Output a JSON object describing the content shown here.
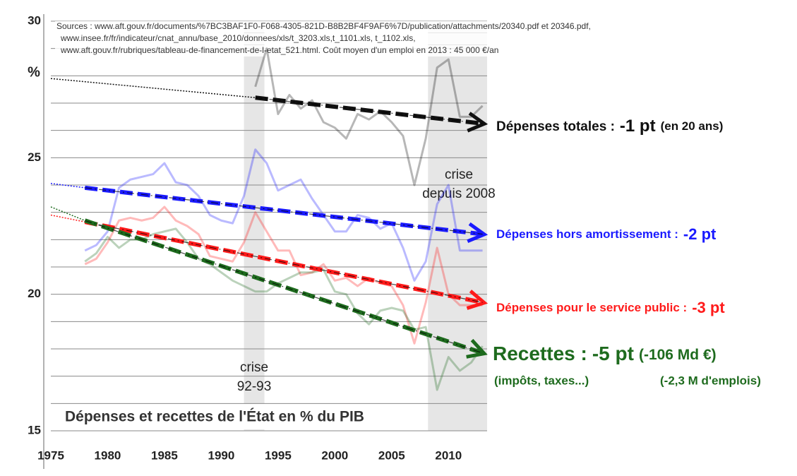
{
  "chart_data": {
    "type": "line",
    "title": "Dépenses et recettes de l'État en % du PIB",
    "sources": [
      "Sources : www.aft.gouv.fr/documents/%7BC3BAF1F0-F068-4305-821D-B8B2BF4F9AF6%7D/publication/attachments/20340.pdf et 20346.pdf,",
      "www.insee.fr/fr/indicateur/cnat_annu/base_2010/donnees/xls/t_3203.xls,t_1101.xls, t_1102.xls,",
      "www.aft.gouv.fr/rubriques/tableau-de-financement-de-l-etat_521.html. Coût moyen d'un emploi en 2013 : 45 000 €/an"
    ],
    "y_unit": "%",
    "xlim": [
      1975,
      2013.4
    ],
    "xticks": [
      1975,
      1980,
      1985,
      1990,
      1995,
      2000,
      2005,
      2010
    ],
    "ylim": [
      15,
      30
    ],
    "yticks": [
      15,
      20,
      25,
      30
    ],
    "ygrid": [
      15,
      16,
      17,
      18,
      19,
      20,
      21,
      22,
      23,
      24,
      25,
      26,
      27,
      28,
      29,
      30
    ],
    "bands": [
      {
        "x": [
          1992,
          1993.8
        ],
        "label": [
          "crise",
          "92-93"
        ]
      },
      {
        "x": [
          2008.2,
          2013.4
        ],
        "label": [
          "crise",
          "depuis 2008"
        ]
      }
    ],
    "x": [
      1978,
      1979,
      1980,
      1981,
      1982,
      1983,
      1984,
      1985,
      1986,
      1987,
      1988,
      1989,
      1990,
      1991,
      1992,
      1993,
      1994,
      1995,
      1996,
      1997,
      1998,
      1999,
      2000,
      2001,
      2002,
      2003,
      2004,
      2005,
      2006,
      2007,
      2008,
      2009,
      2010,
      2011,
      2012,
      2013
    ],
    "series": [
      {
        "name": "Dépenses totales",
        "color": "#111111",
        "values": [
          null,
          null,
          null,
          null,
          null,
          null,
          null,
          null,
          null,
          null,
          null,
          null,
          null,
          null,
          null,
          27.6,
          29.0,
          26.6,
          27.3,
          26.8,
          27.1,
          26.3,
          26.1,
          25.7,
          26.6,
          26.4,
          26.7,
          26.3,
          25.8,
          24.0,
          25.7,
          28.3,
          28.6,
          26.5,
          26.5,
          26.9
        ],
        "trend": {
          "x": [
            1975,
            1993,
            2013
          ],
          "values": [
            27.9,
            27.2,
            26.25
          ]
        },
        "label": [
          "Dépenses totales :",
          "-1 pt",
          "(en 20 ans)"
        ]
      },
      {
        "name": "Dépenses hors amortissement",
        "color": "#1a1aff",
        "values": [
          21.6,
          21.8,
          22.3,
          23.9,
          24.2,
          24.3,
          24.4,
          24.8,
          24.1,
          24.0,
          23.6,
          22.9,
          22.7,
          22.6,
          23.6,
          25.3,
          24.8,
          23.8,
          24.0,
          24.2,
          23.5,
          22.9,
          22.3,
          22.3,
          22.9,
          22.8,
          22.4,
          22.6,
          21.7,
          20.5,
          21.2,
          23.3,
          24.0,
          21.6,
          21.6,
          21.6
        ],
        "trend": {
          "x": [
            1975,
            1978,
            2013
          ],
          "values": [
            24.06,
            23.9,
            22.2
          ]
        },
        "label": [
          "Dépenses hors amortissement :",
          "-2 pt"
        ]
      },
      {
        "name": "Dépenses pour le service public",
        "color": "#ff1a1a",
        "values": [
          21.1,
          21.3,
          21.9,
          22.7,
          22.8,
          22.7,
          22.8,
          23.2,
          22.7,
          22.5,
          22.2,
          21.4,
          21.3,
          21.2,
          21.9,
          23.0,
          22.3,
          21.6,
          21.6,
          20.7,
          20.8,
          21.1,
          20.5,
          20.6,
          20.3,
          20.6,
          20.4,
          20.3,
          19.6,
          18.2,
          19.7,
          21.7,
          20.0,
          19.6,
          19.6,
          19.6
        ],
        "trend": {
          "x": [
            1975,
            1978,
            2013
          ],
          "values": [
            22.9,
            22.65,
            19.7
          ]
        },
        "label": [
          "Dépenses pour le service public :",
          "-3 pt"
        ]
      },
      {
        "name": "Recettes",
        "color": "#1e6b1e",
        "values": [
          21.2,
          21.5,
          22.1,
          21.7,
          22.0,
          22.0,
          22.2,
          22.3,
          22.4,
          21.9,
          21.3,
          21.1,
          20.8,
          20.5,
          20.3,
          20.1,
          20.1,
          20.4,
          20.6,
          20.8,
          20.8,
          20.9,
          20.1,
          20.0,
          19.3,
          18.9,
          19.4,
          19.5,
          19.4,
          18.7,
          18.8,
          16.5,
          17.7,
          17.2,
          17.5,
          18.1
        ],
        "trend": {
          "x": [
            1975,
            1978,
            2013
          ],
          "values": [
            23.2,
            22.7,
            17.85
          ]
        },
        "label": [
          "Recettes :",
          "-5 pt",
          "(-106 Md €)"
        ],
        "notes": [
          "(impôts, taxes...)",
          "(-2,3 M d'emplois)"
        ]
      }
    ]
  }
}
